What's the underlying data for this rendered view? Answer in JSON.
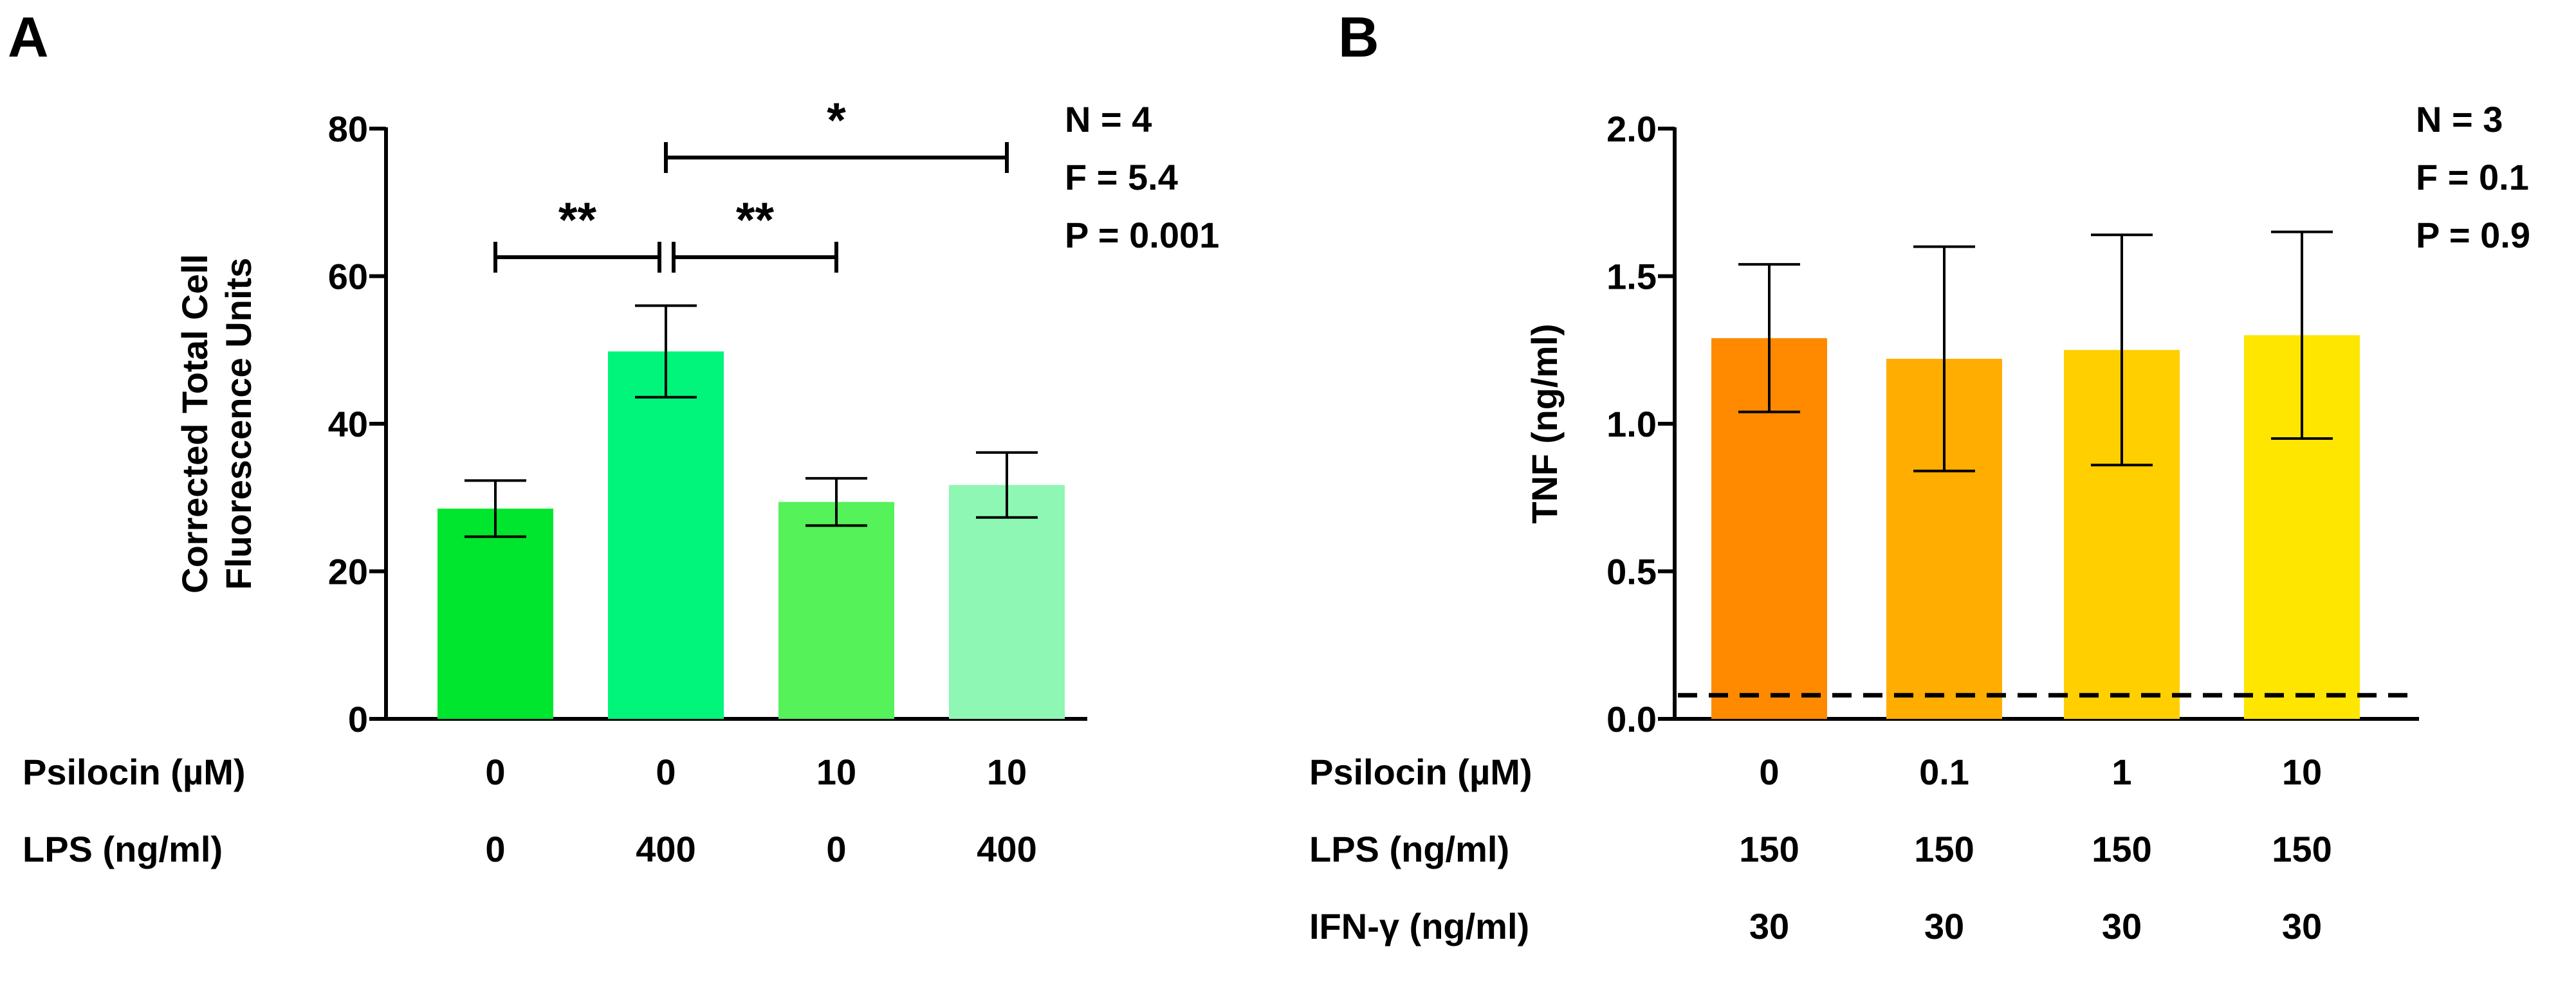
{
  "panels": [
    {
      "letter": "A",
      "stats": [
        "N = 4",
        "F = 5.4",
        "P = 0.001"
      ],
      "footer_rows": [
        {
          "label": "Psilocin (µM)",
          "values": [
            "0",
            "0",
            "10",
            "10"
          ]
        },
        {
          "label": "LPS (ng/ml)",
          "values": [
            "0",
            "400",
            "0",
            "400"
          ]
        }
      ],
      "significance": [
        {
          "from": 0,
          "to": 1,
          "label": "**"
        },
        {
          "from": 1,
          "to": 2,
          "label": "**"
        },
        {
          "from": 1,
          "to": 3,
          "label": "*"
        }
      ]
    },
    {
      "letter": "B",
      "stats": [
        "N = 3",
        "F = 0.1",
        "P = 0.9"
      ],
      "footer_rows": [
        {
          "label": "Psilocin (µM)",
          "values": [
            "0",
            "0.1",
            "1",
            "10"
          ]
        },
        {
          "label": "LPS (ng/ml)",
          "values": [
            "150",
            "150",
            "150",
            "150"
          ]
        },
        {
          "label": "IFN-γ (ng/ml)",
          "values": [
            "30",
            "30",
            "30",
            "30"
          ]
        }
      ],
      "significance": []
    }
  ],
  "chart_data": [
    {
      "type": "bar",
      "categories": [
        "0 / 0",
        "0 / 400",
        "10 / 0",
        "10 / 400"
      ],
      "values": [
        28.5,
        49.8,
        29.4,
        31.7
      ],
      "errors": [
        3.8,
        6.2,
        3.2,
        4.4
      ],
      "colors": [
        "#00e62e",
        "#00f57a",
        "#55f25a",
        "#8ef7b3"
      ],
      "ylabel": "Corrected Total Cell\nFluorescence Units",
      "ylim": [
        0,
        80
      ],
      "yticks": [
        "0",
        "20",
        "40",
        "60",
        "80"
      ],
      "ytick_values": [
        0,
        20,
        40,
        60,
        80
      ],
      "grid": false,
      "legend": "none"
    },
    {
      "type": "bar",
      "categories": [
        "0",
        "0.1",
        "1",
        "10"
      ],
      "values": [
        1.29,
        1.22,
        1.25,
        1.3
      ],
      "errors": [
        0.25,
        0.38,
        0.39,
        0.35
      ],
      "colors": [
        "#ff8a00",
        "#ffad00",
        "#ffcf00",
        "#ffe600"
      ],
      "ylabel": "TNF (ng/ml)",
      "ylim": [
        0,
        2.0
      ],
      "yticks": [
        "0.0",
        "0.5",
        "1.0",
        "1.5",
        "2.0"
      ],
      "ytick_values": [
        0,
        0.5,
        1.0,
        1.5,
        2.0
      ],
      "reference_line": {
        "value": 0.08,
        "style": "dashed"
      },
      "grid": false,
      "legend": "none"
    }
  ]
}
